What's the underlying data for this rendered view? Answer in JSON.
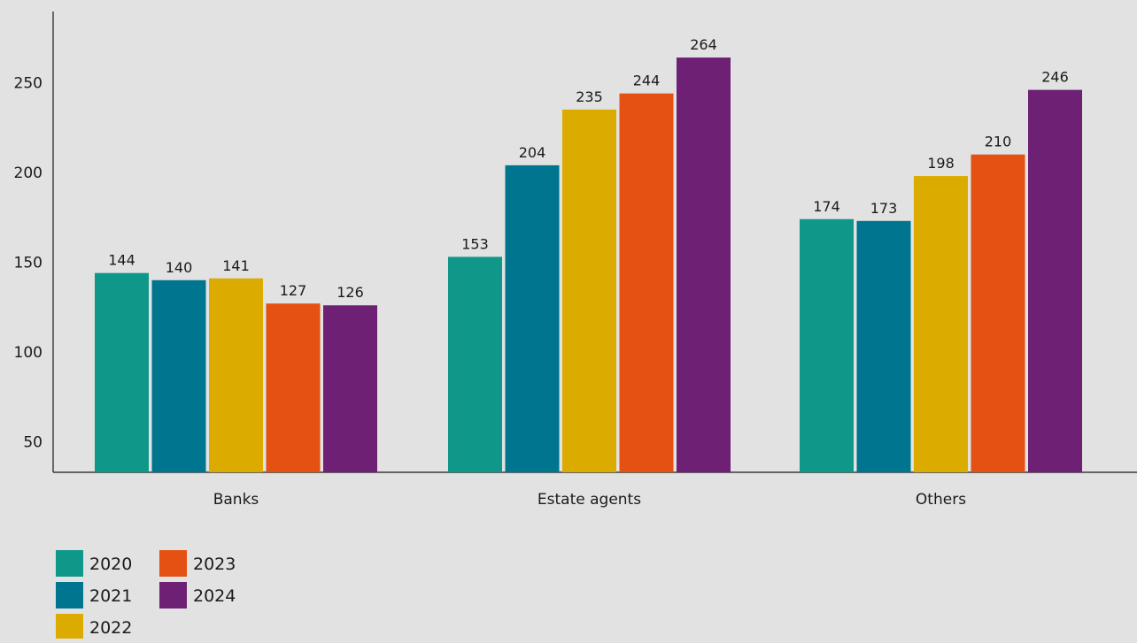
{
  "chart_data": {
    "type": "bar",
    "title": "",
    "xlabel": "",
    "ylabel": "",
    "categories": [
      "Banks",
      "Estate agents",
      "Others"
    ],
    "series": [
      {
        "name": "2020",
        "color": "#0f9789",
        "values": [
          144,
          153,
          174
        ]
      },
      {
        "name": "2021",
        "color": "#007590",
        "values": [
          140,
          204,
          173
        ]
      },
      {
        "name": "2022",
        "color": "#dbab00",
        "values": [
          141,
          235,
          198
        ]
      },
      {
        "name": "2023",
        "color": "#e55112",
        "values": [
          127,
          244,
          210
        ]
      },
      {
        "name": "2024",
        "color": "#6e2074",
        "values": [
          126,
          264,
          246
        ]
      }
    ],
    "y_ticks": [
      "50",
      "100",
      "150",
      "200",
      "250"
    ],
    "ylim": [
      33,
      285
    ],
    "grid": false,
    "legend_position": "bottom-left"
  }
}
